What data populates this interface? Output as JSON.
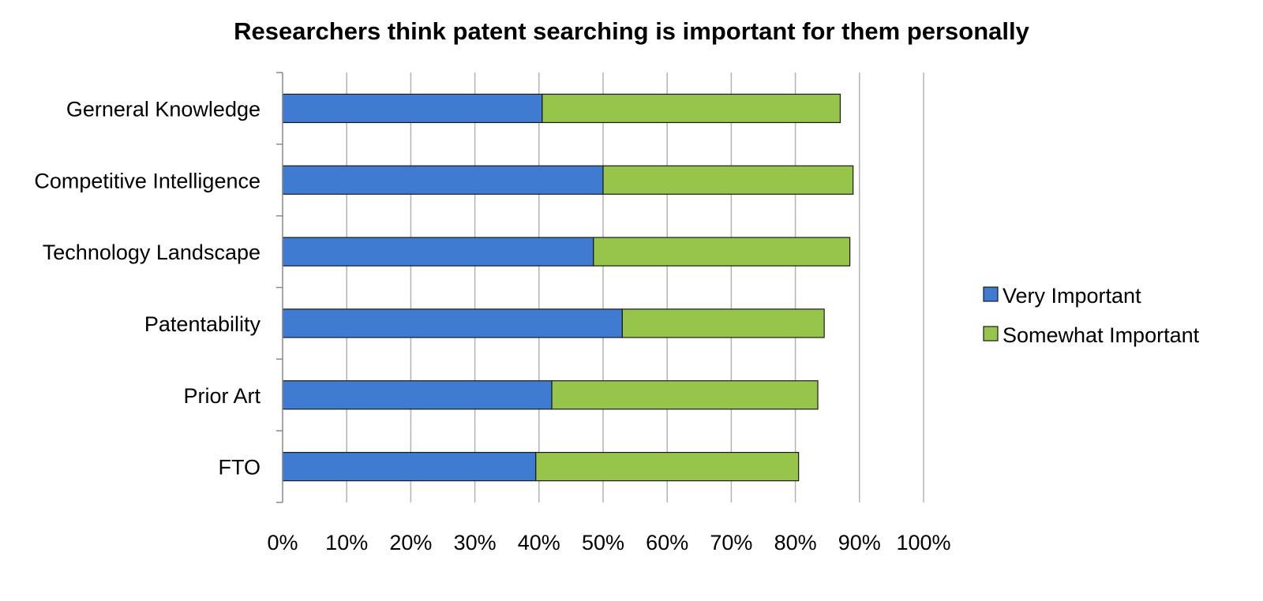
{
  "chart_data": {
    "type": "bar",
    "orientation": "horizontal",
    "stacked": true,
    "title": "Researchers think patent searching is important for them personally",
    "categories": [
      "Gerneral Knowledge",
      "Competitive Intelligence",
      "Technology Landscape",
      "Patentability",
      "Prior Art",
      "FTO"
    ],
    "series": [
      {
        "name": "Very Important",
        "color": "#3e7bd1",
        "values": [
          40.5,
          50,
          48.5,
          53,
          42,
          39.5
        ]
      },
      {
        "name": "Somewhat Important",
        "color": "#97c44b",
        "values": [
          46.5,
          39,
          40,
          31.5,
          41.5,
          41
        ]
      }
    ],
    "xlabel": "",
    "ylabel": "",
    "xlim": [
      0,
      100
    ],
    "x_ticks": [
      "0%",
      "10%",
      "20%",
      "30%",
      "40%",
      "50%",
      "60%",
      "70%",
      "80%",
      "90%",
      "100%"
    ],
    "grid": "vertical",
    "legend_position": "right"
  }
}
